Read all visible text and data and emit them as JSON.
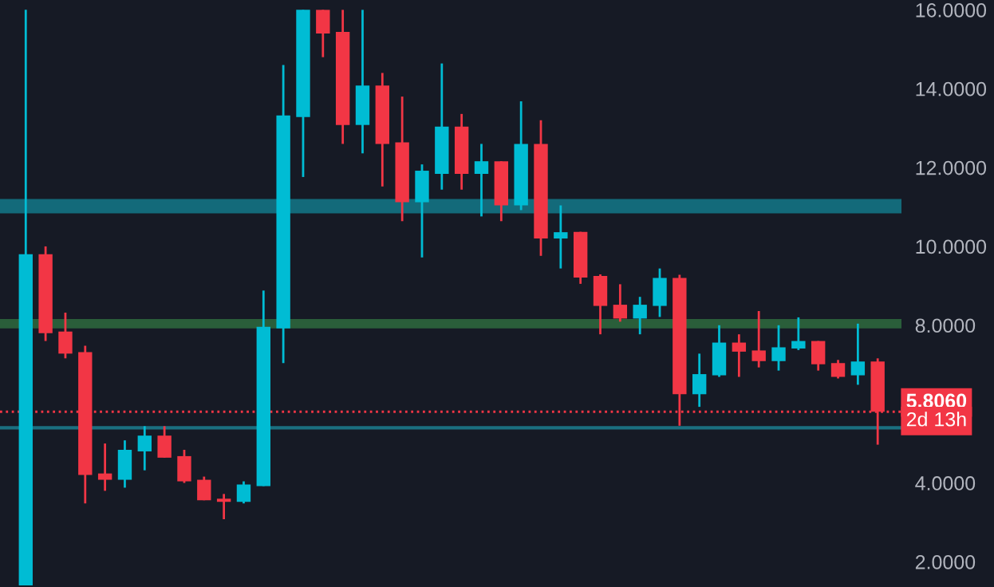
{
  "chart_data": {
    "type": "candlestick",
    "categories": [
      null,
      null,
      null,
      null,
      null,
      null,
      null,
      null,
      null,
      null,
      null,
      null,
      null,
      null,
      null,
      null,
      null,
      null,
      null,
      null,
      null,
      null,
      null,
      null,
      null,
      null,
      null,
      null,
      null,
      null,
      null,
      null,
      null,
      null,
      null,
      null,
      null,
      null,
      null,
      null,
      null,
      null,
      null,
      null
    ],
    "ohlc": [
      [
        1.4,
        16.0,
        1.4,
        9.8
      ],
      [
        9.8,
        10.0,
        7.6,
        7.8
      ],
      [
        7.84,
        8.32,
        7.16,
        7.28
      ],
      [
        7.32,
        7.48,
        3.48,
        4.2
      ],
      [
        4.24,
        5.0,
        3.8,
        4.08
      ],
      [
        4.08,
        5.08,
        3.88,
        4.84
      ],
      [
        4.8,
        5.44,
        4.32,
        5.2
      ],
      [
        5.2,
        5.44,
        4.64,
        4.64
      ],
      [
        4.68,
        4.84,
        4.0,
        4.04
      ],
      [
        4.08,
        4.16,
        3.56,
        3.56
      ],
      [
        3.6,
        3.72,
        3.08,
        3.52
      ],
      [
        3.52,
        4.04,
        3.48,
        3.96
      ],
      [
        3.92,
        8.88,
        3.92,
        7.96
      ],
      [
        7.92,
        14.6,
        7.04,
        13.32
      ],
      [
        13.28,
        16.0,
        11.76,
        16.0
      ],
      [
        16.0,
        16.0,
        14.8,
        15.4
      ],
      [
        15.44,
        16.0,
        12.6,
        13.08
      ],
      [
        13.08,
        16.0,
        12.36,
        14.08
      ],
      [
        14.08,
        14.4,
        11.52,
        12.6
      ],
      [
        12.64,
        13.8,
        10.64,
        11.12
      ],
      [
        11.12,
        12.08,
        9.72,
        11.92
      ],
      [
        11.84,
        14.64,
        11.44,
        13.04
      ],
      [
        13.04,
        13.36,
        11.44,
        11.84
      ],
      [
        11.84,
        12.6,
        10.76,
        12.16
      ],
      [
        12.16,
        12.16,
        10.64,
        11.04
      ],
      [
        11.04,
        13.68,
        10.92,
        12.6
      ],
      [
        12.6,
        13.2,
        9.76,
        10.2
      ],
      [
        10.2,
        11.04,
        9.44,
        10.36
      ],
      [
        10.37,
        10.37,
        9.05,
        9.21
      ],
      [
        9.25,
        9.29,
        7.77,
        8.49
      ],
      [
        8.52,
        9.04,
        8.09,
        8.17
      ],
      [
        8.17,
        8.72,
        7.77,
        8.52
      ],
      [
        8.49,
        9.44,
        8.21,
        9.2
      ],
      [
        9.2,
        9.28,
        5.45,
        6.25
      ],
      [
        6.25,
        7.28,
        5.93,
        6.76
      ],
      [
        6.73,
        8.0,
        6.69,
        7.56
      ],
      [
        7.56,
        7.77,
        6.69,
        7.33
      ],
      [
        7.36,
        8.36,
        6.93,
        7.09
      ],
      [
        7.09,
        8.0,
        6.85,
        7.44
      ],
      [
        7.41,
        8.2,
        7.37,
        7.6
      ],
      [
        7.6,
        7.6,
        6.85,
        7.01
      ],
      [
        7.04,
        7.12,
        6.65,
        6.69
      ],
      [
        6.73,
        8.04,
        6.49,
        7.08
      ],
      [
        7.08,
        7.16,
        4.97,
        5.806
      ]
    ],
    "colors": [
      "#00bcd4",
      "#f23645",
      "#f23645",
      "#f23645",
      "#f23645",
      "#00bcd4",
      "#00bcd4",
      "#f23645",
      "#f23645",
      "#f23645",
      "#f23645",
      "#00bcd4",
      "#00bcd4",
      "#00bcd4",
      "#00bcd4",
      "#f23645",
      "#f23645",
      "#00bcd4",
      "#f23645",
      "#f23645",
      "#00bcd4",
      "#00bcd4",
      "#f23645",
      "#00bcd4",
      "#f23645",
      "#00bcd4",
      "#f23645",
      "#00bcd4",
      "#f23645",
      "#f23645",
      "#f23645",
      "#00bcd4",
      "#00bcd4",
      "#f23645",
      "#00bcd4",
      "#00bcd4",
      "#f23645",
      "#f23645",
      "#00bcd4",
      "#00bcd4",
      "#f23645",
      "#f23645",
      "#00bcd4",
      "#f23645"
    ],
    "ylim": [
      1.36,
      16.25
    ],
    "yticks": [
      {
        "value": 2,
        "label": "2.0000"
      },
      {
        "value": 4,
        "label": "4.0000"
      },
      {
        "value": 8,
        "label": "8.0000"
      },
      {
        "value": 10,
        "label": "10.0000"
      },
      {
        "value": 12,
        "label": "12.0000"
      },
      {
        "value": 14,
        "label": "14.0000"
      },
      {
        "value": 16,
        "label": "16.0000"
      }
    ],
    "tick_labels": "y",
    "bands": [
      {
        "axis": "y",
        "from": 10.84,
        "to": 11.2,
        "color": "#136a7a"
      },
      {
        "axis": "y",
        "from": 7.92,
        "to": 8.16,
        "color": "#2a5e3a"
      }
    ],
    "ref_lines": [
      {
        "axis": "y",
        "value": 5.4,
        "color": "#1a6f80",
        "line_style": "solid"
      },
      {
        "axis": "y",
        "value": 5.806,
        "label": "5.8060",
        "color": "#f23645",
        "line_style": "dotted"
      }
    ],
    "annotations": [
      "2d 13h"
    ]
  }
}
